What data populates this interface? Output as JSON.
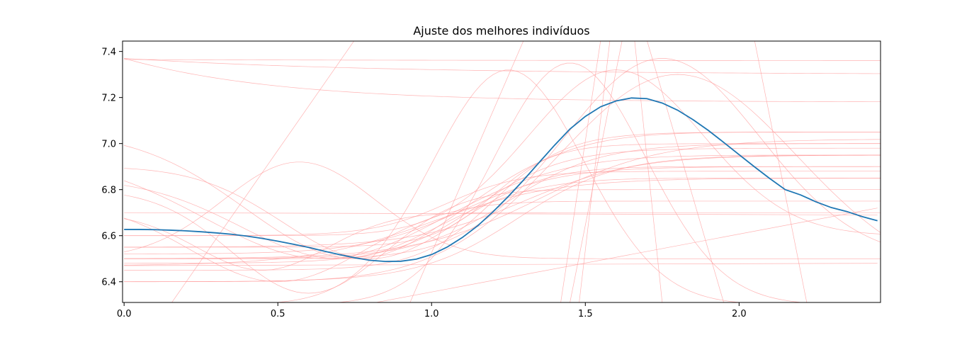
{
  "chart_data": {
    "type": "line",
    "title": "Ajuste dos melhores indivíduos",
    "xlabel": "",
    "ylabel": "",
    "xlim": [
      -0.005,
      2.46
    ],
    "ylim": [
      6.31,
      7.445
    ],
    "xticks": [
      0.0,
      0.5,
      1.0,
      1.5,
      2.0
    ],
    "xtick_labels": [
      "0.0",
      "0.5",
      "1.0",
      "1.5",
      "2.0"
    ],
    "yticks": [
      6.4,
      6.6,
      6.8,
      7.0,
      7.2,
      7.4
    ],
    "ytick_labels": [
      "6.4",
      "6.6",
      "6.8",
      "7.0",
      "7.2",
      "7.4"
    ],
    "grid": false,
    "legend": "none",
    "main_color": "#1f77b4",
    "candidate_color": "#ff9999",
    "main_series": {
      "x": [
        0.0,
        0.05,
        0.1,
        0.15,
        0.2,
        0.25,
        0.3,
        0.35,
        0.4,
        0.45,
        0.5,
        0.55,
        0.6,
        0.65,
        0.7,
        0.75,
        0.8,
        0.85,
        0.9,
        0.95,
        1.0,
        1.05,
        1.1,
        1.15,
        1.2,
        1.25,
        1.3,
        1.35,
        1.4,
        1.45,
        1.5,
        1.55,
        1.6,
        1.65,
        1.7,
        1.75,
        1.8,
        1.85,
        1.9,
        1.95,
        2.0,
        2.05,
        2.1,
        2.15,
        2.2,
        2.25,
        2.3,
        2.35,
        2.4,
        2.45
      ],
      "values": [
        6.627,
        6.627,
        6.626,
        6.624,
        6.621,
        6.617,
        6.612,
        6.606,
        6.598,
        6.588,
        6.576,
        6.563,
        6.549,
        6.533,
        6.518,
        6.504,
        6.493,
        6.488,
        6.489,
        6.498,
        6.518,
        6.55,
        6.592,
        6.643,
        6.704,
        6.771,
        6.843,
        6.918,
        6.993,
        7.063,
        7.118,
        7.16,
        7.185,
        7.198,
        7.195,
        7.176,
        7.145,
        7.104,
        7.057,
        7.005,
        6.952,
        6.899,
        6.848,
        6.8,
        6.777,
        6.747,
        6.722,
        6.705,
        6.683,
        6.665
      ]
    },
    "candidate_series": [
      {
        "type": "sigmoid",
        "a": 6.5,
        "b": 7.0,
        "c": 1.25,
        "s": 0.15
      },
      {
        "type": "sigmoid",
        "a": 6.45,
        "b": 7.05,
        "c": 1.2,
        "s": 0.12
      },
      {
        "type": "sigmoid",
        "a": 6.55,
        "b": 6.95,
        "c": 1.3,
        "s": 0.18
      },
      {
        "type": "sigmoid",
        "a": 6.48,
        "b": 6.98,
        "c": 1.15,
        "s": 0.14
      },
      {
        "type": "sigmoid",
        "a": 6.52,
        "b": 6.9,
        "c": 1.1,
        "s": 0.16
      },
      {
        "type": "sigmoid",
        "a": 6.6,
        "b": 6.88,
        "c": 1.05,
        "s": 0.12
      },
      {
        "type": "sigmoid",
        "a": 6.5,
        "b": 7.02,
        "c": 1.35,
        "s": 0.2
      },
      {
        "type": "sigmoid",
        "a": 6.47,
        "b": 6.85,
        "c": 1.0,
        "s": 0.2
      },
      {
        "type": "sigmoid",
        "a": 6.55,
        "b": 7.0,
        "c": 1.2,
        "s": 0.1
      },
      {
        "type": "sigmoid",
        "a": 6.4,
        "b": 6.95,
        "c": 1.28,
        "s": 0.16
      },
      {
        "type": "bump",
        "base": 6.85,
        "amp": -0.35,
        "c": 0.7,
        "w": 0.45
      },
      {
        "type": "bump",
        "base": 7.05,
        "amp": -0.55,
        "c": 0.75,
        "w": 0.5
      },
      {
        "type": "bump",
        "base": 6.95,
        "amp": -0.45,
        "c": 0.65,
        "w": 0.55
      },
      {
        "type": "bump",
        "base": 6.9,
        "amp": -0.4,
        "c": 0.8,
        "w": 0.4
      },
      {
        "type": "bump",
        "base": 6.5,
        "amp": 0.42,
        "c": 0.57,
        "w": 0.35
      },
      {
        "type": "bump",
        "base": 6.3,
        "amp": 1.02,
        "c": 1.25,
        "w": 0.35
      },
      {
        "type": "bump",
        "base": 6.3,
        "amp": 1.05,
        "c": 1.45,
        "w": 0.35
      },
      {
        "type": "bump",
        "base": 6.5,
        "amp": 0.87,
        "c": 1.75,
        "w": 0.45
      },
      {
        "type": "bump",
        "base": 6.4,
        "amp": 0.9,
        "c": 1.8,
        "w": 0.55
      },
      {
        "type": "bump",
        "base": 6.6,
        "amp": 0.72,
        "c": 1.6,
        "w": 0.4
      },
      {
        "type": "bump",
        "base": 6.8,
        "amp": -0.45,
        "c": 0.6,
        "w": 0.35
      },
      {
        "type": "bump",
        "base": 6.75,
        "amp": -0.35,
        "c": 0.5,
        "w": 0.4
      },
      {
        "type": "bump",
        "base": 6.7,
        "amp": -0.25,
        "c": 0.45,
        "w": 0.3
      },
      {
        "type": "decay",
        "inf": 7.3,
        "amp": 0.07,
        "k": 1.2
      },
      {
        "type": "decay",
        "inf": 7.18,
        "amp": 0.19,
        "k": 2.0
      },
      {
        "type": "decay",
        "inf": 7.36,
        "amp": 0.005,
        "k": 1.0
      },
      {
        "type": "linear",
        "x0": 0.7,
        "y0": 6.28,
        "x1": 2.45,
        "y1": 6.72
      },
      {
        "type": "linear",
        "x0": 0.0,
        "y0": 6.7,
        "x1": 2.45,
        "y1": 6.69
      },
      {
        "type": "linear",
        "x0": 0.0,
        "y0": 6.47,
        "x1": 2.45,
        "y1": 6.48
      },
      {
        "type": "linear",
        "x0": 0.15,
        "y0": 6.3,
        "x1": 0.75,
        "y1": 7.45
      },
      {
        "type": "linear",
        "x0": 0.93,
        "y0": 6.31,
        "x1": 1.3,
        "y1": 7.45
      },
      {
        "type": "linear",
        "x0": 1.45,
        "y0": 6.31,
        "x1": 1.62,
        "y1": 7.45
      },
      {
        "type": "linear",
        "x0": 1.48,
        "y0": 6.31,
        "x1": 1.58,
        "y1": 7.45
      },
      {
        "type": "linear",
        "x0": 1.42,
        "y0": 6.31,
        "x1": 1.55,
        "y1": 7.45
      },
      {
        "type": "linear",
        "x0": 1.7,
        "y0": 7.45,
        "x1": 1.95,
        "y1": 6.31
      },
      {
        "type": "linear",
        "x0": 2.05,
        "y0": 7.45,
        "x1": 2.22,
        "y1": 6.31
      },
      {
        "type": "linear",
        "x0": 1.66,
        "y0": 7.45,
        "x1": 1.75,
        "y1": 6.31
      }
    ]
  }
}
